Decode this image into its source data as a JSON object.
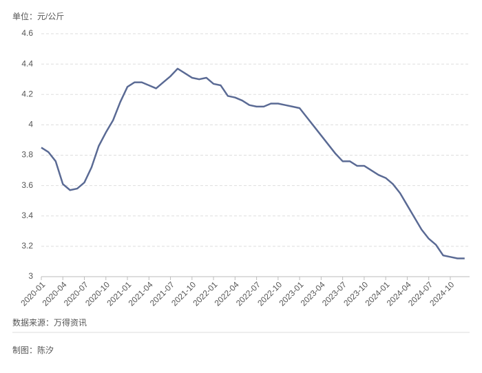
{
  "chart_data": {
    "type": "line",
    "unit_label": "单位：元/公斤",
    "source": "数据来源：万得资讯",
    "credit": "制图：陈汐",
    "categories": [
      "2020-01",
      null,
      null,
      "2020-04",
      null,
      null,
      "2020-07",
      null,
      null,
      "2020-10",
      null,
      null,
      "2021-01",
      null,
      null,
      "2021-04",
      null,
      null,
      "2021-07",
      null,
      null,
      "2021-10",
      null,
      null,
      "2022-01",
      null,
      null,
      "2022-04",
      null,
      null,
      "2022-07",
      null,
      null,
      "2022-10",
      null,
      null,
      "2023-01",
      null,
      null,
      "2023-04",
      null,
      null,
      "2023-07",
      null,
      null,
      "2023-10",
      null,
      null,
      "2024-01",
      null,
      null,
      "2024-04",
      null,
      null,
      "2024-07",
      null,
      null,
      "2024-10",
      null,
      null
    ],
    "series": [
      {
        "color": "#5a6a94",
        "values": [
          3.85,
          3.82,
          3.76,
          3.61,
          3.57,
          3.58,
          3.62,
          3.72,
          3.86,
          3.95,
          4.03,
          4.15,
          4.25,
          4.28,
          4.28,
          4.26,
          4.24,
          4.28,
          4.32,
          4.37,
          4.34,
          4.31,
          4.3,
          4.31,
          4.27,
          4.26,
          4.19,
          4.18,
          4.16,
          4.13,
          4.12,
          4.12,
          4.14,
          4.14,
          4.13,
          4.12,
          4.11,
          4.05,
          3.99,
          3.93,
          3.87,
          3.81,
          3.76,
          3.76,
          3.73,
          3.73,
          3.7,
          3.67,
          3.65,
          3.61,
          3.55,
          3.47,
          3.39,
          3.31,
          3.25,
          3.21,
          3.14,
          3.13,
          3.12,
          3.12
        ]
      }
    ],
    "ylim": [
      3,
      4.6
    ],
    "yticks": [
      3,
      3.2,
      3.4,
      3.6,
      3.8,
      4,
      4.2,
      4.4,
      4.6
    ],
    "grid": true
  }
}
